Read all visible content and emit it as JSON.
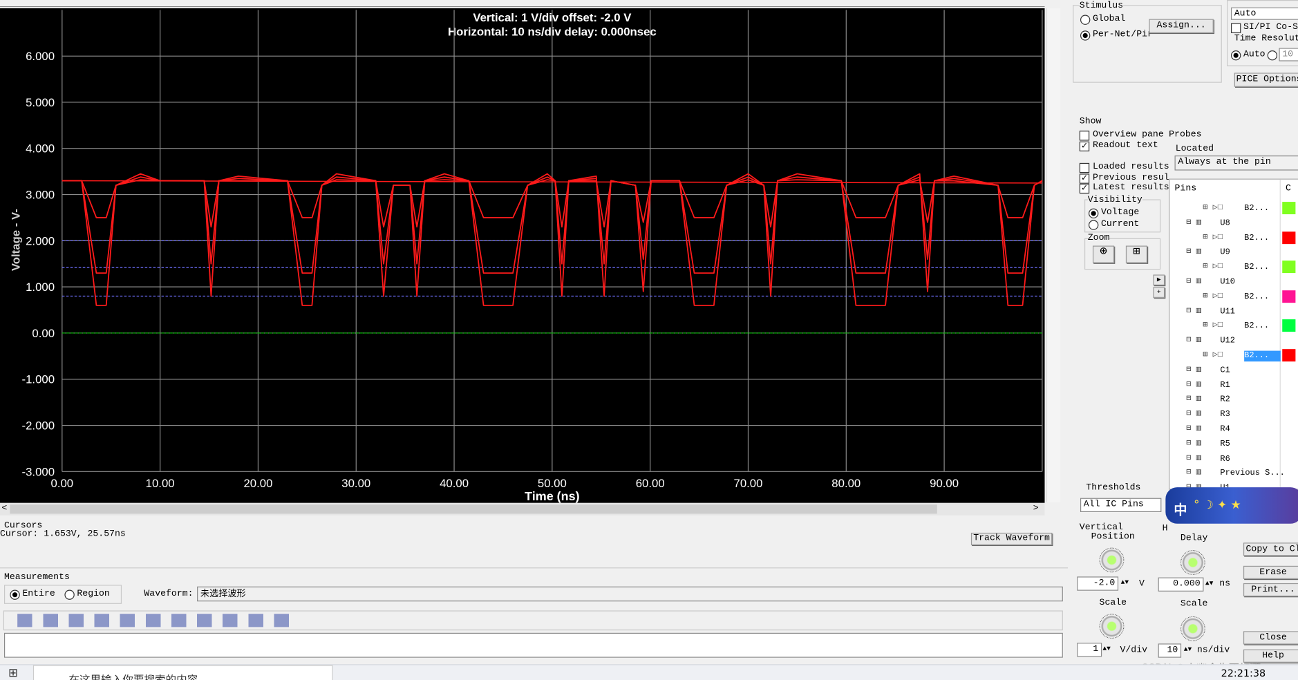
{
  "chart_data": {
    "type": "line",
    "title": "Vertical: 1  V/div  offset: -2.0 V",
    "subtitle": "Horizontal: 10 ns/div  delay: 0.000nsec",
    "x_label": "Time  (ns)",
    "y_label": "Voltage  - V-",
    "x": [
      0,
      2,
      3.5,
      4.5,
      5.5,
      8,
      10,
      14.5,
      15.2,
      16,
      18,
      23,
      24.5,
      25.5,
      26.5,
      28,
      32,
      32.8,
      33.8,
      35.5,
      36.2,
      37,
      39,
      41.5,
      43,
      46,
      47.5,
      49.5,
      50.3,
      51,
      51.7,
      54.5,
      55.3,
      56,
      58.5,
      59.3,
      60.1,
      63,
      64.5,
      66.5,
      67.8,
      70,
      71.6,
      72.3,
      73,
      75,
      79.5,
      81,
      84,
      85.3,
      87.5,
      88.3,
      89,
      91,
      95.5,
      96.5,
      98,
      99.2,
      100
    ],
    "series": [
      {
        "color": "#ff1a1a",
        "values": [
          3.3,
          3.3,
          0.6,
          0.6,
          3.2,
          3.45,
          3.3,
          3.3,
          0.8,
          3.3,
          3.4,
          3.3,
          0.6,
          0.6,
          3.2,
          3.45,
          3.3,
          0.8,
          3.2,
          3.2,
          0.8,
          3.3,
          3.45,
          3.3,
          0.6,
          0.6,
          3.2,
          3.45,
          3.3,
          0.8,
          3.3,
          3.4,
          0.8,
          3.3,
          3.2,
          0.9,
          3.3,
          3.3,
          0.6,
          0.6,
          3.2,
          3.45,
          3.2,
          0.8,
          3.3,
          3.45,
          3.3,
          0.6,
          0.6,
          3.2,
          3.45,
          0.9,
          3.3,
          3.4,
          3.2,
          0.6,
          0.6,
          3.2,
          3.3
        ]
      },
      {
        "color": "#ff1a1a",
        "values": [
          3.3,
          3.3,
          1.3,
          1.3,
          3.2,
          3.38,
          3.3,
          3.3,
          1.5,
          3.3,
          3.35,
          3.3,
          1.3,
          1.3,
          3.2,
          3.38,
          3.3,
          1.5,
          3.2,
          3.2,
          1.5,
          3.3,
          3.38,
          3.3,
          1.3,
          1.3,
          3.2,
          3.38,
          3.3,
          1.5,
          3.3,
          3.35,
          1.5,
          3.3,
          3.2,
          1.6,
          3.3,
          3.3,
          1.3,
          1.3,
          3.2,
          3.38,
          3.2,
          1.5,
          3.3,
          3.38,
          3.3,
          1.3,
          1.3,
          3.2,
          3.38,
          1.6,
          3.3,
          3.35,
          3.2,
          1.3,
          1.3,
          3.2,
          3.3
        ]
      },
      {
        "color": "#ff1a1a",
        "values": [
          3.3,
          3.3,
          2.5,
          2.5,
          3.2,
          3.32,
          3.3,
          3.3,
          2.3,
          3.3,
          3.3,
          3.3,
          2.5,
          2.5,
          3.2,
          3.32,
          3.3,
          2.3,
          3.2,
          3.2,
          2.3,
          3.3,
          3.32,
          3.3,
          2.5,
          2.5,
          3.2,
          3.32,
          3.3,
          2.3,
          3.3,
          3.3,
          2.3,
          3.3,
          3.2,
          2.4,
          3.3,
          3.3,
          2.5,
          2.5,
          3.2,
          3.32,
          3.2,
          2.3,
          3.3,
          3.32,
          3.3,
          2.5,
          2.5,
          3.2,
          3.32,
          2.4,
          3.3,
          3.3,
          3.2,
          2.5,
          2.5,
          3.2,
          3.3
        ]
      }
    ],
    "flat_line": {
      "color": "#ff1a1a",
      "values": [
        3.3,
        3.25
      ]
    },
    "thresholds": {
      "color": "#7070ff",
      "values": [
        2.0,
        1.42,
        0.8
      ]
    },
    "baseline": {
      "color": "#00c000",
      "value": 0
    },
    "xlim": [
      0,
      100
    ],
    "ylim": [
      -3,
      7
    ],
    "xticks": [
      {
        "value": 0,
        "label": "0.00"
      },
      {
        "value": 10,
        "label": "10.00"
      },
      {
        "value": 20,
        "label": "20.00"
      },
      {
        "value": 30,
        "label": "30.00"
      },
      {
        "value": 40,
        "label": "40.00"
      },
      {
        "value": 50,
        "label": "50.00"
      },
      {
        "value": 60,
        "label": "60.00"
      },
      {
        "value": 70,
        "label": "70.00"
      },
      {
        "value": 80,
        "label": "80.00"
      },
      {
        "value": 90,
        "label": "90.00"
      }
    ],
    "yticks": [
      {
        "value": -3,
        "label": "-3.000"
      },
      {
        "value": -2,
        "label": "-2.000"
      },
      {
        "value": -1,
        "label": "-1.000"
      },
      {
        "value": 0,
        "label": "0.00"
      },
      {
        "value": 1,
        "label": "1.000"
      },
      {
        "value": 2,
        "label": "2.000"
      },
      {
        "value": 3,
        "label": "3.000"
      },
      {
        "value": 4,
        "label": "4.000"
      },
      {
        "value": 5,
        "label": "5.000"
      },
      {
        "value": 6,
        "label": "6.000"
      }
    ],
    "grid": true
  },
  "stimulus": {
    "title": "Stimulus",
    "global": "Global",
    "per_net": "Per-Net/Pir",
    "assign": "Assign..."
  },
  "simulator": {
    "mode": "Auto",
    "co_sim": "SI/PI Co-Si",
    "time_resolution": "Time Resoluti",
    "auto": "Auto",
    "value": "10",
    "options": "PICE Options"
  },
  "show": {
    "title": "Show",
    "overview": "Overview pane",
    "readout": "Readout text",
    "probes": "Probes",
    "located": "Located",
    "located_value": "Always at the pin",
    "loaded": "Loaded results",
    "previous": "Previous resul",
    "latest": "Latest results",
    "visibility": "Visibility",
    "voltage": "Voltage",
    "current": "Current",
    "zoom": "Zoom"
  },
  "pins": {
    "header": "Pins",
    "column": "C",
    "items": [
      {
        "label": "B2...",
        "color": "#80ff20"
      },
      {
        "label": "U8"
      },
      {
        "label": "B2...",
        "color": "#ff0000"
      },
      {
        "label": "U9"
      },
      {
        "label": "B2...",
        "color": "#80ff20"
      },
      {
        "label": "U10"
      },
      {
        "label": "B2...",
        "color": "#ff1493"
      },
      {
        "label": "U11"
      },
      {
        "label": "B2...",
        "color": "#00ff40"
      },
      {
        "label": "U12"
      },
      {
        "label": "B2...",
        "color": "#ff0000"
      },
      {
        "label": "C1"
      },
      {
        "label": "R1"
      },
      {
        "label": "R2"
      },
      {
        "label": "R3"
      },
      {
        "label": "R4"
      },
      {
        "label": "R5"
      },
      {
        "label": "R6"
      },
      {
        "label": "Previous S..."
      },
      {
        "label": "U1"
      }
    ]
  },
  "thresholds": {
    "title": "Thresholds",
    "value": "All IC Pins"
  },
  "cursors": {
    "title": "Cursors",
    "readout": "Cursor: 1.653V, 25.57ns",
    "track": "Track Waveform"
  },
  "measurements": {
    "title": "Measurements",
    "entire": "Entire",
    "region": "Region",
    "waveform_label": "Waveform:",
    "waveform_value": "未选择波形"
  },
  "vertical": {
    "title": "Vertical",
    "subtitle": "Position",
    "position": "-2.0",
    "unit": "V",
    "scale_label": "Scale",
    "scale": "1",
    "scale_unit": "V/div"
  },
  "horizontal": {
    "title": "H",
    "subtitle": "Delay",
    "delay": "0.000",
    "unit": "ns",
    "scale_label": "Scale",
    "scale": "10",
    "scale_unit": "ns/div"
  },
  "buttons": {
    "copy": "Copy to Cl",
    "erase": "Erase",
    "print": "Print...",
    "close": "Close",
    "help": "Help"
  },
  "ime": "中",
  "taskbar": {
    "search": "在这里输入你要搜索的内容",
    "clock": "22:21:38",
    "watermark": "CSDN @小幽会生不加糖"
  }
}
